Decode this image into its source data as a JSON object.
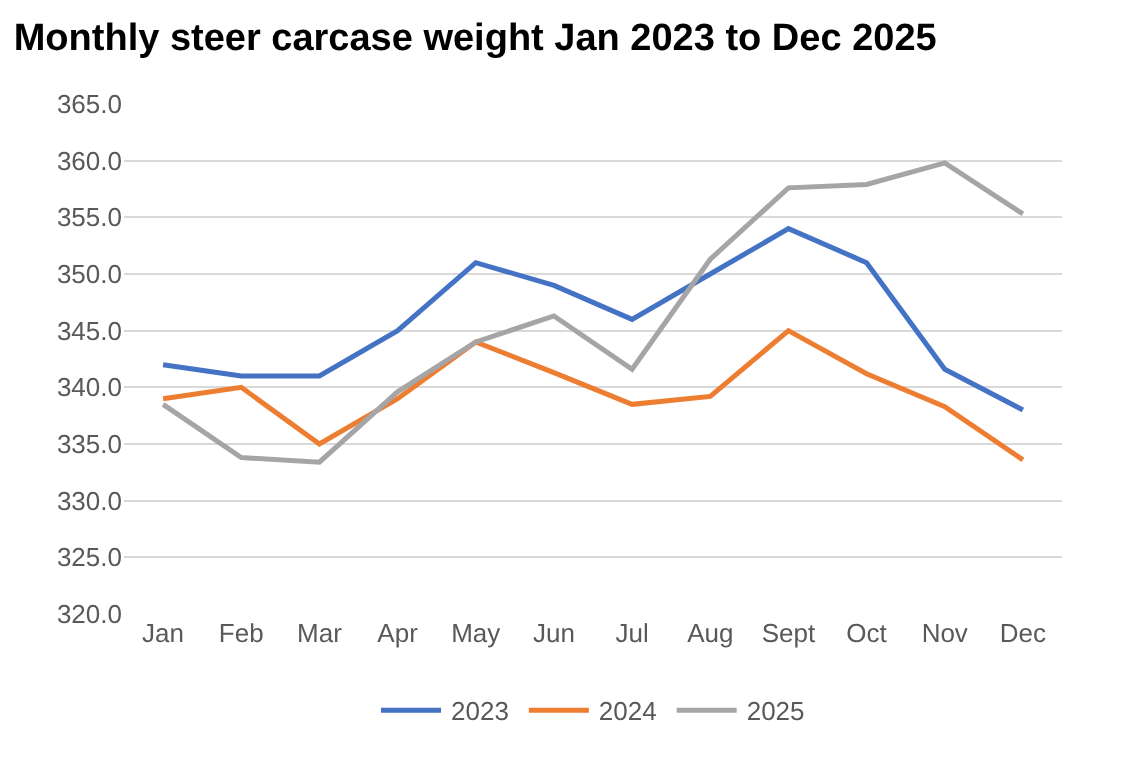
{
  "chart_data": {
    "type": "line",
    "title": "Monthly steer carcase weight Jan 2023 to Dec 2025",
    "categories": [
      "Jan",
      "Feb",
      "Mar",
      "Apr",
      "May",
      "Jun",
      "Jul",
      "Aug",
      "Sept",
      "Oct",
      "Nov",
      "Dec"
    ],
    "series": [
      {
        "name": "2023",
        "color": "#4472c4",
        "values": [
          342,
          341,
          341,
          345,
          351,
          349,
          346,
          350,
          354,
          351,
          341.6,
          338
        ]
      },
      {
        "name": "2024",
        "color": "#ed7d31",
        "values": [
          339,
          340,
          335,
          339,
          344,
          341.3,
          338.5,
          339.2,
          345,
          341.2,
          338.3,
          333.6
        ]
      },
      {
        "name": "2025",
        "color": "#a5a5a5",
        "values": [
          338.5,
          333.8,
          333.4,
          339.6,
          344,
          346.3,
          341.6,
          351.3,
          357.6,
          357.9,
          359.8,
          355.3
        ]
      }
    ],
    "ylim": [
      320,
      365
    ],
    "yticks": [
      {
        "value": 320,
        "label": "320.0"
      },
      {
        "value": 325,
        "label": "325.0"
      },
      {
        "value": 330,
        "label": "330.0"
      },
      {
        "value": 335,
        "label": "335.0"
      },
      {
        "value": 340,
        "label": "340.0"
      },
      {
        "value": 345,
        "label": "345.0"
      },
      {
        "value": 350,
        "label": "350.0"
      },
      {
        "value": 355,
        "label": "355.0"
      },
      {
        "value": 360,
        "label": "360.0"
      },
      {
        "value": 365,
        "label": "365.0"
      }
    ],
    "grid": "y",
    "legend": "bottom",
    "marker": "none",
    "line_style": "solid"
  }
}
